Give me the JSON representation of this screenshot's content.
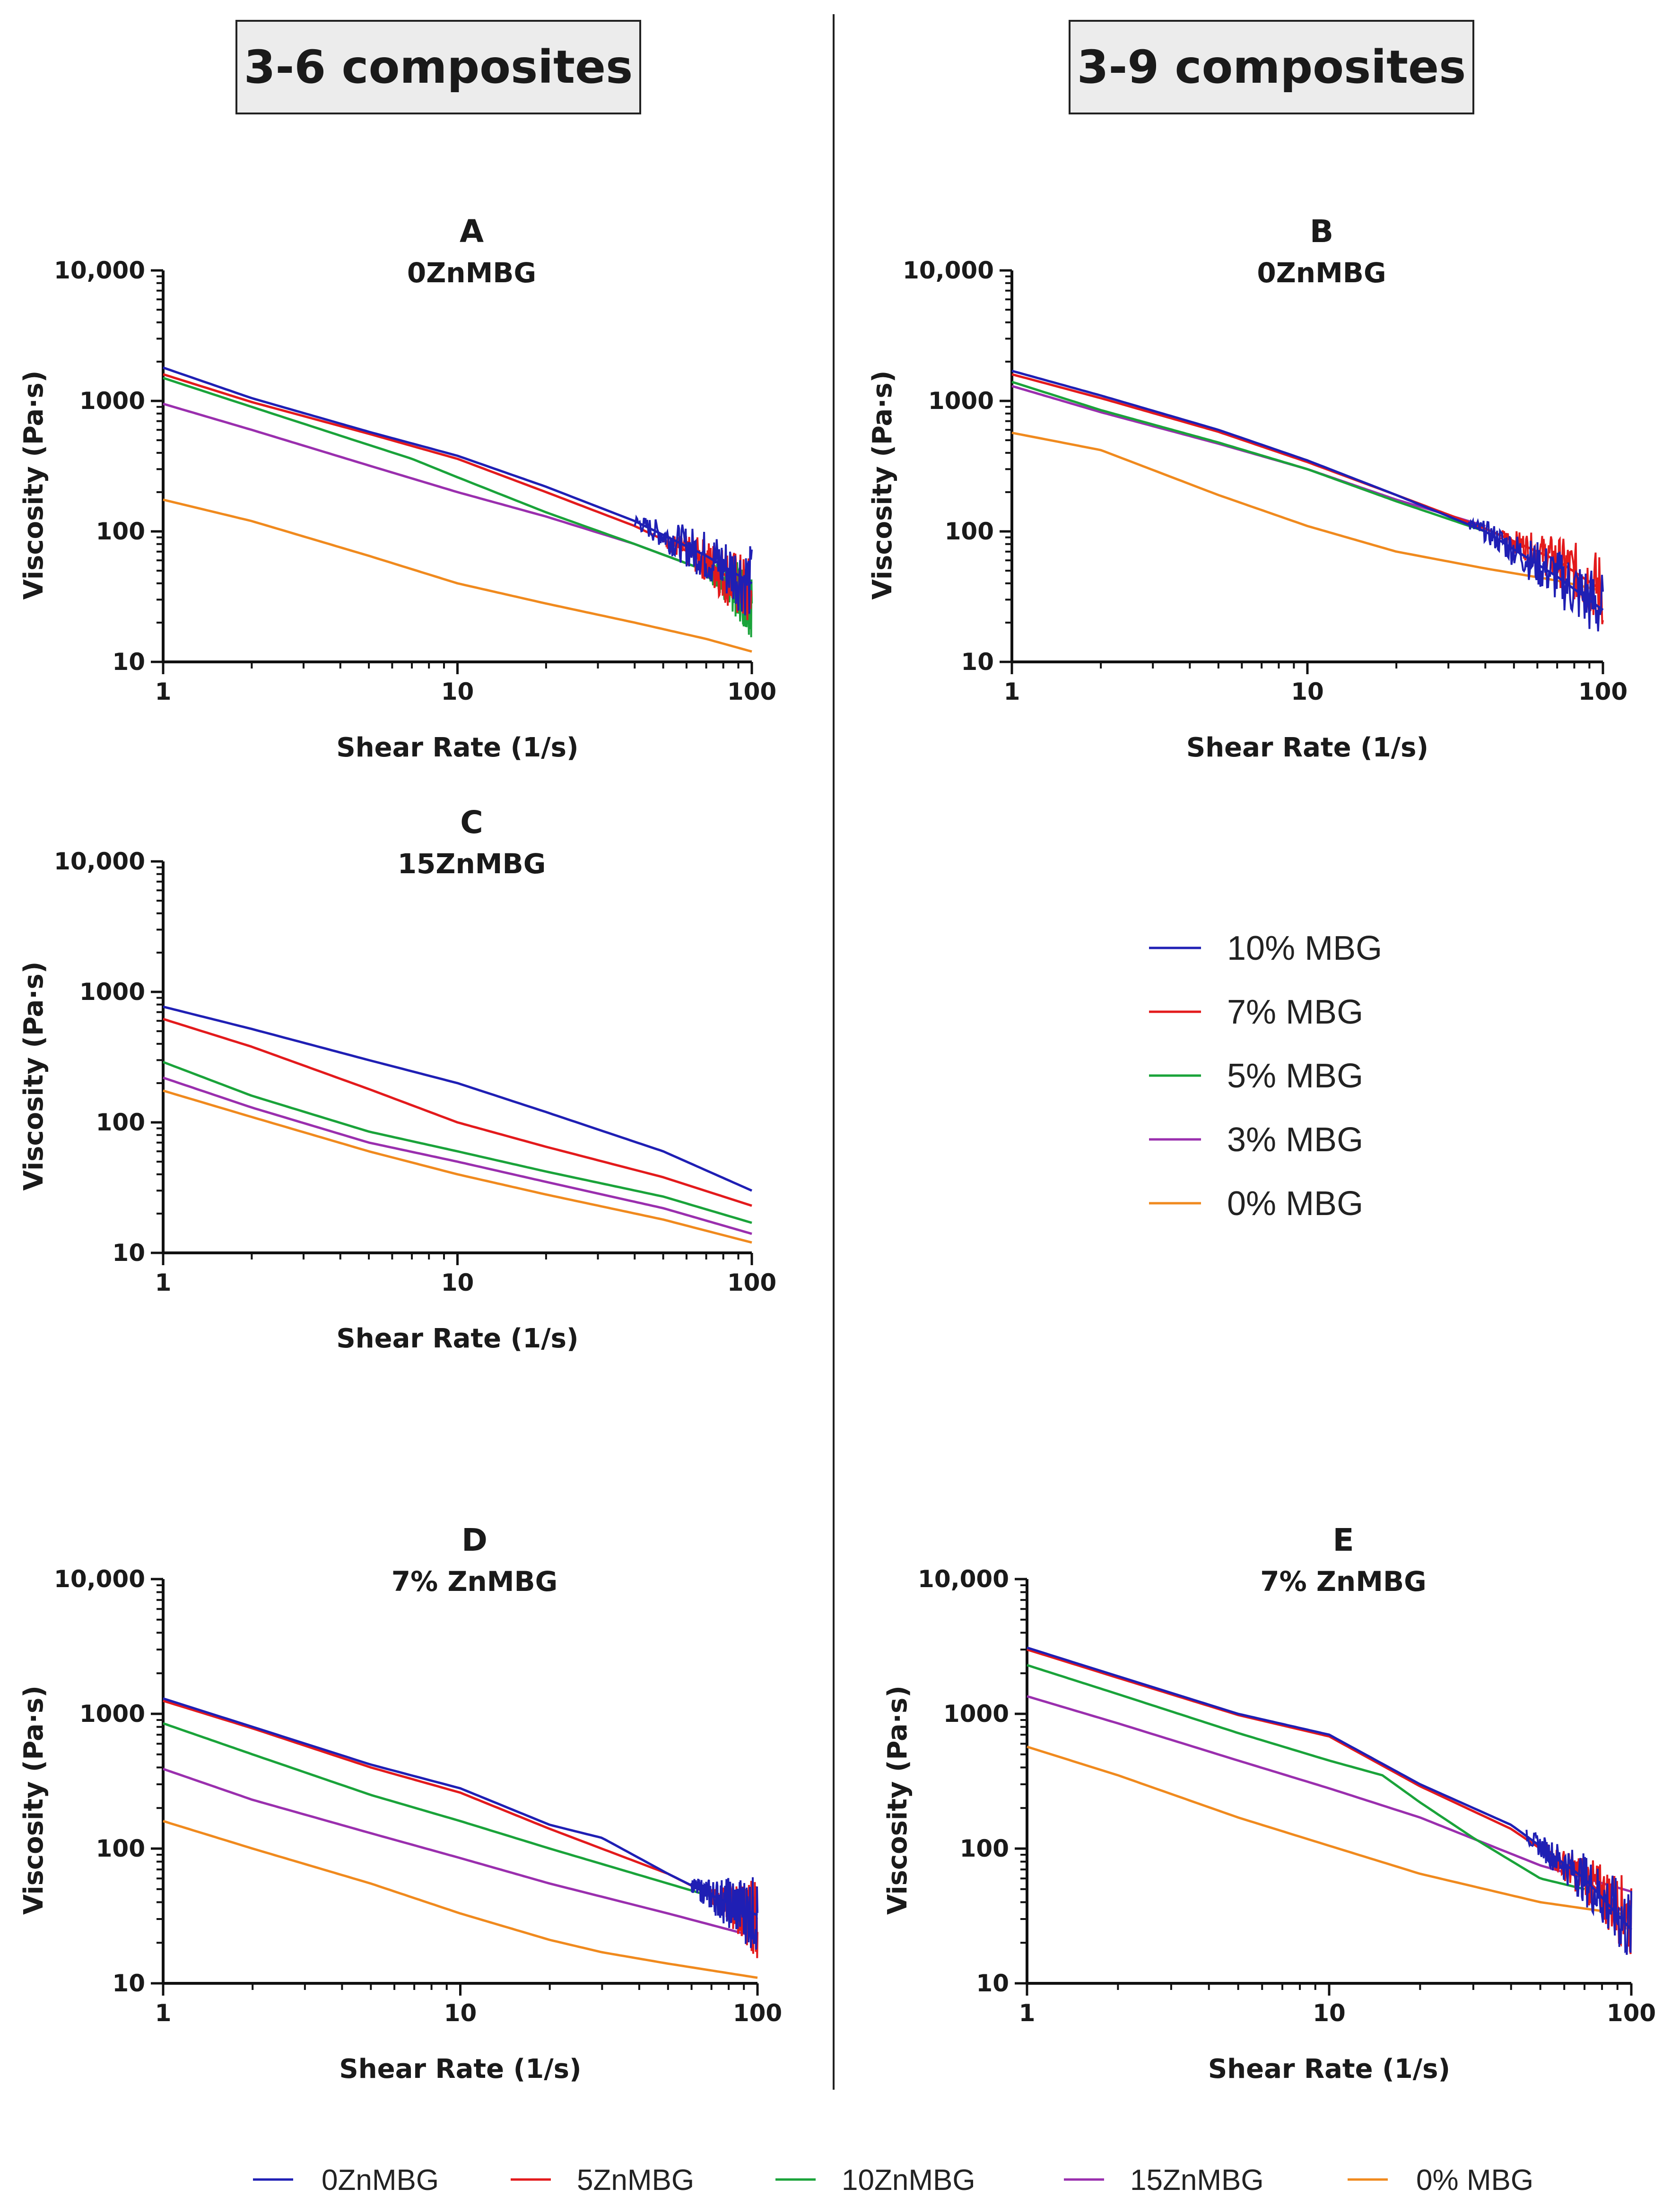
{
  "headers": {
    "left": "3-6 composites",
    "right": "3-9 composites"
  },
  "colors": {
    "10% MBG": "#1f1fb4",
    "7% MBG": "#e31a1c",
    "5% MBG": "#1aa33a",
    "3% MBG": "#9a2fae",
    "0% MBG": "#f08a1e",
    "0ZnMBG": "#1f1fb4",
    "5ZnMBG": "#e31a1c",
    "10ZnMBG": "#1aa33a",
    "15ZnMBG": "#9a2fae"
  },
  "legend_right": [
    "10% MBG",
    "7% MBG",
    "5% MBG",
    "3% MBG",
    "0% MBG"
  ],
  "legend_bottom": [
    "0ZnMBG",
    "5ZnMBG",
    "10ZnMBG",
    "15ZnMBG",
    "0% MBG"
  ],
  "chart_data": [
    {
      "id": "A",
      "letter": "A",
      "title": "0ZnMBG",
      "type": "line",
      "xscale": "log",
      "yscale": "log",
      "xlabel": "Shear Rate (1/s)",
      "ylabel": "Viscosity (Pa·s)",
      "xlim": [
        1,
        100
      ],
      "ylim": [
        10,
        10000
      ],
      "xticks": [
        "1",
        "10",
        "100"
      ],
      "yticks": [
        "10",
        "100",
        "1000",
        "10,000"
      ],
      "series": [
        {
          "name": "10% MBG",
          "x": [
            1,
            2,
            5,
            10,
            20,
            40,
            70,
            100
          ],
          "y": [
            1800,
            1050,
            580,
            380,
            220,
            120,
            65,
            40
          ],
          "noise_from": 40
        },
        {
          "name": "7% MBG",
          "x": [
            1,
            2,
            5,
            10,
            20,
            40,
            70,
            100
          ],
          "y": [
            1600,
            980,
            560,
            360,
            200,
            110,
            60,
            32
          ],
          "noise_from": 50
        },
        {
          "name": "5% MBG",
          "x": [
            1,
            2,
            5,
            7,
            10,
            20,
            40,
            70,
            100
          ],
          "y": [
            1500,
            900,
            460,
            360,
            260,
            140,
            80,
            50,
            30
          ],
          "noise_from": 70
        },
        {
          "name": "3% MBG",
          "x": [
            1,
            2,
            5,
            10,
            20,
            40,
            70,
            100
          ],
          "y": [
            950,
            600,
            320,
            200,
            130,
            80,
            50,
            35
          ]
        },
        {
          "name": "0% MBG",
          "x": [
            1,
            2,
            5,
            10,
            20,
            40,
            70,
            100
          ],
          "y": [
            175,
            120,
            65,
            40,
            28,
            20,
            15,
            12
          ]
        }
      ]
    },
    {
      "id": "B",
      "letter": "B",
      "title": "0ZnMBG",
      "type": "line",
      "xscale": "log",
      "yscale": "log",
      "xlabel": "Shear Rate (1/s)",
      "ylabel": "Viscosity (Pa·s)",
      "xlim": [
        1,
        100
      ],
      "ylim": [
        10,
        10000
      ],
      "xticks": [
        "1",
        "10",
        "100"
      ],
      "yticks": [
        "10",
        "100",
        "1000",
        "10,000"
      ],
      "series": [
        {
          "name": "10% MBG",
          "x": [
            1,
            2,
            5,
            10,
            20,
            40,
            70,
            100
          ],
          "y": [
            1700,
            1100,
            600,
            350,
            190,
            100,
            45,
            25
          ],
          "noise_from": 35
        },
        {
          "name": "7% MBG",
          "x": [
            1,
            2,
            5,
            10,
            20,
            40,
            70,
            100
          ],
          "y": [
            1600,
            1050,
            580,
            340,
            190,
            105,
            60,
            35
          ],
          "noise_from": 45
        },
        {
          "name": "5% MBG",
          "x": [
            1,
            2,
            5,
            10,
            20,
            40
          ],
          "y": [
            1400,
            850,
            480,
            300,
            170,
            100
          ]
        },
        {
          "name": "3% MBG",
          "x": [
            1,
            2,
            5,
            10,
            20,
            40
          ],
          "y": [
            1300,
            820,
            470,
            300,
            175,
            110
          ]
        },
        {
          "name": "0% MBG",
          "x": [
            1,
            2,
            5,
            10,
            20,
            40,
            70,
            100
          ],
          "y": [
            570,
            420,
            190,
            110,
            70,
            52,
            42,
            35
          ]
        }
      ]
    },
    {
      "id": "C",
      "letter": "C",
      "title": "15ZnMBG",
      "type": "line",
      "xscale": "log",
      "yscale": "log",
      "xlabel": "Shear Rate (1/s)",
      "ylabel": "Viscosity (Pa·s)",
      "xlim": [
        1,
        100
      ],
      "ylim": [
        10,
        10000
      ],
      "xticks": [
        "1",
        "10",
        "100"
      ],
      "yticks": [
        "10",
        "100",
        "1000",
        "10,000"
      ],
      "series": [
        {
          "name": "10% MBG",
          "x": [
            1,
            2,
            5,
            10,
            20,
            50,
            100
          ],
          "y": [
            770,
            520,
            300,
            200,
            120,
            60,
            30
          ]
        },
        {
          "name": "7% MBG",
          "x": [
            1,
            2,
            5,
            10,
            20,
            50,
            100
          ],
          "y": [
            620,
            380,
            180,
            100,
            65,
            38,
            23
          ]
        },
        {
          "name": "5% MBG",
          "x": [
            1,
            2,
            5,
            10,
            20,
            50,
            100
          ],
          "y": [
            290,
            160,
            85,
            60,
            42,
            27,
            17
          ]
        },
        {
          "name": "3% MBG",
          "x": [
            1,
            2,
            5,
            10,
            20,
            50,
            100
          ],
          "y": [
            220,
            130,
            70,
            50,
            35,
            22,
            14
          ]
        },
        {
          "name": "0% MBG",
          "x": [
            1,
            2,
            5,
            10,
            20,
            50,
            100
          ],
          "y": [
            175,
            110,
            60,
            40,
            28,
            18,
            12
          ]
        }
      ]
    },
    {
      "id": "D",
      "letter": "D",
      "title": "7% ZnMBG",
      "type": "line",
      "xscale": "log",
      "yscale": "log",
      "xlabel": "Shear Rate (1/s)",
      "ylabel": "Viscosity (Pa·s)",
      "xlim": [
        1,
        100
      ],
      "ylim": [
        10,
        10000
      ],
      "xticks": [
        "1",
        "10",
        "100"
      ],
      "yticks": [
        "10",
        "100",
        "1000",
        "10,000"
      ],
      "series": [
        {
          "name": "0ZnMBG",
          "x": [
            1,
            2,
            5,
            10,
            20,
            30,
            50,
            70,
            100
          ],
          "y": [
            1300,
            800,
            420,
            280,
            150,
            120,
            65,
            45,
            32
          ],
          "noise_from": 60
        },
        {
          "name": "5ZnMBG",
          "x": [
            1,
            2,
            5,
            10,
            20,
            50,
            100
          ],
          "y": [
            1250,
            780,
            400,
            260,
            140,
            65,
            30
          ],
          "noise_from": 70
        },
        {
          "name": "10ZnMBG",
          "x": [
            1,
            2,
            5,
            10,
            20,
            50,
            100
          ],
          "y": [
            850,
            500,
            250,
            160,
            100,
            55,
            35
          ]
        },
        {
          "name": "15ZnMBG",
          "x": [
            1,
            2,
            5,
            10,
            20,
            50,
            100
          ],
          "y": [
            390,
            230,
            130,
            85,
            55,
            33,
            22
          ]
        },
        {
          "name": "0% MBG",
          "x": [
            1,
            2,
            5,
            10,
            20,
            30,
            50,
            100
          ],
          "y": [
            160,
            100,
            55,
            33,
            21,
            17,
            14,
            11
          ]
        }
      ]
    },
    {
      "id": "E",
      "letter": "E",
      "title": "7% ZnMBG",
      "type": "line",
      "xscale": "log",
      "yscale": "log",
      "xlabel": "Shear Rate (1/s)",
      "ylabel": "Viscosity (Pa·s)",
      "xlim": [
        1,
        100
      ],
      "ylim": [
        10,
        10000
      ],
      "xticks": [
        "1",
        "10",
        "100"
      ],
      "yticks": [
        "10",
        "100",
        "1000",
        "10,000"
      ],
      "series": [
        {
          "name": "0ZnMBG",
          "x": [
            1,
            2,
            5,
            10,
            20,
            40,
            70,
            100
          ],
          "y": [
            3100,
            1900,
            1000,
            700,
            300,
            150,
            60,
            25
          ],
          "noise_from": 45
        },
        {
          "name": "5ZnMBG",
          "x": [
            1,
            2,
            5,
            10,
            20,
            40,
            70,
            100
          ],
          "y": [
            3000,
            1850,
            980,
            680,
            290,
            140,
            60,
            30
          ],
          "noise_from": 50
        },
        {
          "name": "10ZnMBG",
          "x": [
            1,
            2,
            5,
            10,
            15,
            20,
            30,
            50,
            70
          ],
          "y": [
            2300,
            1400,
            720,
            450,
            350,
            220,
            120,
            60,
            50
          ]
        },
        {
          "name": "15ZnMBG",
          "x": [
            1,
            2,
            5,
            10,
            20,
            50,
            100
          ],
          "y": [
            1350,
            850,
            450,
            280,
            170,
            75,
            48
          ]
        },
        {
          "name": "0% MBG",
          "x": [
            1,
            2,
            5,
            10,
            20,
            50,
            100
          ],
          "y": [
            570,
            350,
            170,
            105,
            65,
            40,
            32
          ]
        }
      ]
    }
  ]
}
